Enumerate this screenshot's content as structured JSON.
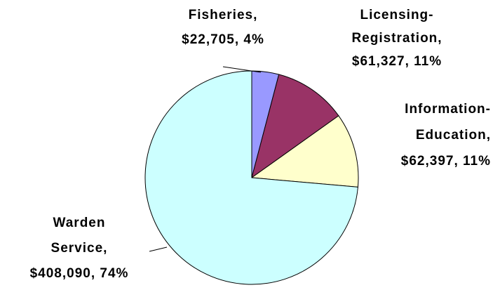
{
  "chart_data": {
    "type": "pie",
    "categories": [
      "Fisheries",
      "Licensing-Registration",
      "Information-Education",
      "Warden Service"
    ],
    "values": [
      22705,
      61327,
      62397,
      408090
    ],
    "labels": [
      [
        "Fisheries,",
        "$22,705, 4%"
      ],
      [
        "Licensing-",
        "Registration,",
        "$61,327, 11%"
      ],
      [
        "Information-",
        "Education,",
        "$62,397, 11%"
      ],
      [
        "Warden",
        "Service,",
        "$408,090, 74%"
      ]
    ],
    "colors": [
      "#9999ff",
      "#993366",
      "#ffffcc",
      "#ccffff"
    ],
    "start_angle": 0,
    "direction": "clockwise"
  }
}
